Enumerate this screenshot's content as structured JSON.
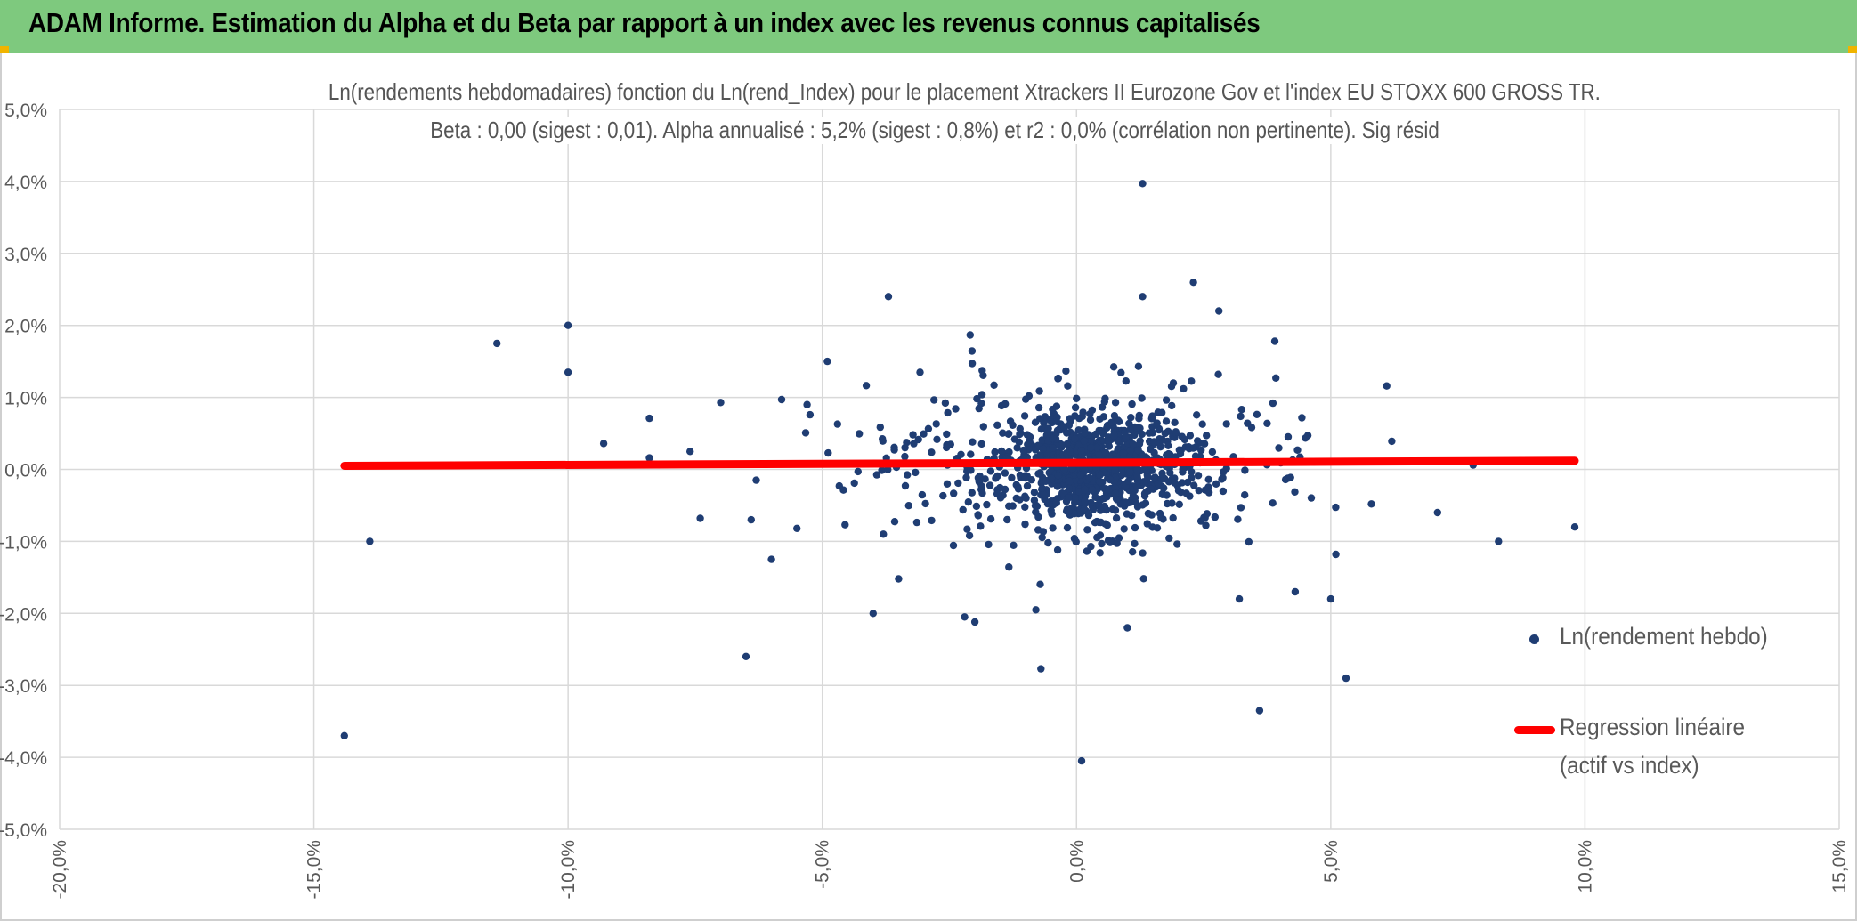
{
  "header": {
    "title": "ADAM Informe. Estimation du Alpha et du Beta par rapport à un index avec les revenus connus capitalisés"
  },
  "colors": {
    "banner": "#7ec97e",
    "points": "#1f3d73",
    "regression": "#ff0000",
    "grid": "#d9d9d9",
    "tick_text": "#595959"
  },
  "chart_data": {
    "type": "scatter",
    "title_line1": "Ln(rendements hebdomadaires) fonction du Ln(rend_Index) pour le placement Xtrackers II Eurozone Gov et l'index EU STOXX 600 GROSS TR.",
    "title_line2": "Beta : 0,00 (sigest : 0,01). Alpha annualisé : 5,2% (sigest : 0,8%) et r2 : 0,0% (corrélation non pertinente). Sig résid",
    "xlabel": "",
    "ylabel": "",
    "xlim": [
      -20,
      15
    ],
    "ylim": [
      -5,
      5
    ],
    "x_ticks": [
      "-20,0%",
      "-15,0%",
      "-10,0%",
      "-5,0%",
      "0,0%",
      "5,0%",
      "10,0%",
      "15,0%"
    ],
    "y_ticks": [
      "5,0%",
      "4,0%",
      "3,0%",
      "2,0%",
      "1,0%",
      "0,0%",
      "-1,0%",
      "-2,0%",
      "-3,0%",
      "-4,0%",
      "-5,0%"
    ],
    "grid": true,
    "legend_position": "right",
    "series": [
      {
        "name": "Ln(rendement hebdo)",
        "kind": "scatter",
        "points_generated_cloud": {
          "count": 1100,
          "x_center": 0.4,
          "y_center": 0.05,
          "seed": 7
        },
        "outliers": [
          {
            "x": -14.4,
            "y": -3.7
          },
          {
            "x": -13.9,
            "y": -1.0
          },
          {
            "x": -11.4,
            "y": 1.75
          },
          {
            "x": -10.0,
            "y": 2.0
          },
          {
            "x": -10.0,
            "y": 1.35
          },
          {
            "x": -9.3,
            "y": 0.36
          },
          {
            "x": -8.4,
            "y": 0.71
          },
          {
            "x": -8.4,
            "y": 0.16
          },
          {
            "x": -7.6,
            "y": 0.25
          },
          {
            "x": -7.4,
            "y": -0.68
          },
          {
            "x": -7.0,
            "y": 0.93
          },
          {
            "x": -6.5,
            "y": -2.6
          },
          {
            "x": -6.4,
            "y": -0.7
          },
          {
            "x": -6.3,
            "y": -0.15
          },
          {
            "x": -6.0,
            "y": -1.25
          },
          {
            "x": -5.8,
            "y": 0.97
          },
          {
            "x": -5.5,
            "y": -0.82
          },
          {
            "x": -5.3,
            "y": 0.9
          },
          {
            "x": -4.9,
            "y": 1.5
          },
          {
            "x": -4.0,
            "y": -2.0
          },
          {
            "x": -3.8,
            "y": -0.9
          },
          {
            "x": -3.7,
            "y": 2.4
          },
          {
            "x": -3.5,
            "y": -1.52
          },
          {
            "x": -2.2,
            "y": -2.05
          },
          {
            "x": -2.0,
            "y": -2.12
          },
          {
            "x": -0.8,
            "y": -1.95
          },
          {
            "x": -0.7,
            "y": -2.77
          },
          {
            "x": 0.1,
            "y": -4.05
          },
          {
            "x": 1.0,
            "y": -2.2
          },
          {
            "x": 1.3,
            "y": 3.97
          },
          {
            "x": 1.3,
            "y": 2.4
          },
          {
            "x": 2.3,
            "y": 2.6
          },
          {
            "x": 2.8,
            "y": 2.2
          },
          {
            "x": 3.2,
            "y": -1.8
          },
          {
            "x": 3.6,
            "y": -3.35
          },
          {
            "x": 3.9,
            "y": 1.78
          },
          {
            "x": 4.3,
            "y": -1.7
          },
          {
            "x": 5.0,
            "y": -1.8
          },
          {
            "x": 5.1,
            "y": -1.18
          },
          {
            "x": 5.3,
            "y": -2.9
          },
          {
            "x": 5.8,
            "y": -0.48
          },
          {
            "x": 6.1,
            "y": 1.16
          },
          {
            "x": 6.2,
            "y": 0.39
          },
          {
            "x": 7.1,
            "y": -0.6
          },
          {
            "x": 7.8,
            "y": 0.06
          },
          {
            "x": 8.3,
            "y": -1.0
          },
          {
            "x": 9.8,
            "y": -0.8
          }
        ]
      },
      {
        "name": "Regression linéaire (actif vs index)",
        "kind": "line",
        "x": [
          -14.4,
          9.8
        ],
        "y": [
          0.05,
          0.12
        ]
      }
    ],
    "legend": {
      "item1": "Ln(rendement hebdo)",
      "item2_line1": "Regression linéaire",
      "item2_line2": "(actif vs index)"
    }
  }
}
